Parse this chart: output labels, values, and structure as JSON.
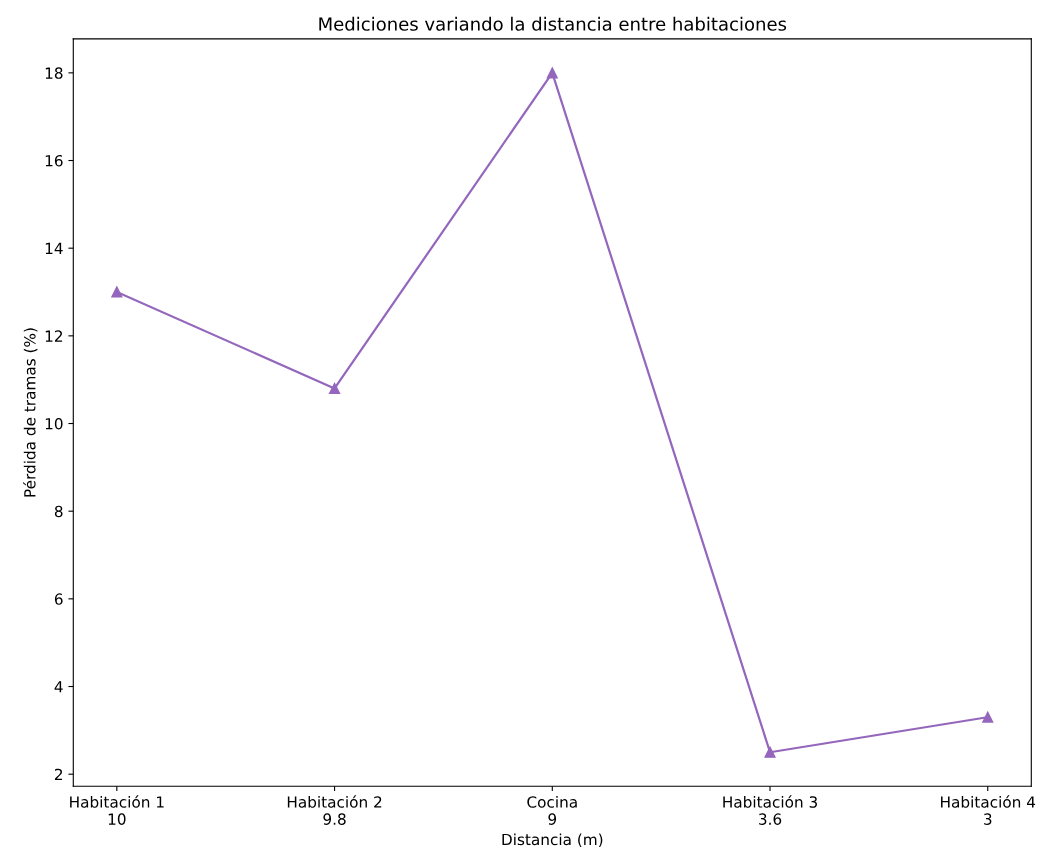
{
  "chart_data": {
    "type": "line",
    "title": "Mediciones variando la distancia entre habitaciones",
    "xlabel": "Distancia (m)",
    "ylabel": "Pérdida de tramas (%)",
    "categories": [
      "Habitación 1\n10",
      "Habitación 2\n9.8",
      "Cocina\n9",
      "Habitación 3\n3.6",
      "Habitación 4\n3"
    ],
    "series": [
      {
        "color": "#9467bd",
        "values": [
          13,
          10.8,
          18,
          2.5,
          3.3
        ]
      }
    ],
    "ylim": [
      1.725,
      18.775
    ],
    "yticks": [
      2,
      4,
      6,
      8,
      10,
      12,
      14,
      16,
      18
    ],
    "marker": "triangle",
    "line_style": "solid",
    "grid": false,
    "legend": false
  }
}
